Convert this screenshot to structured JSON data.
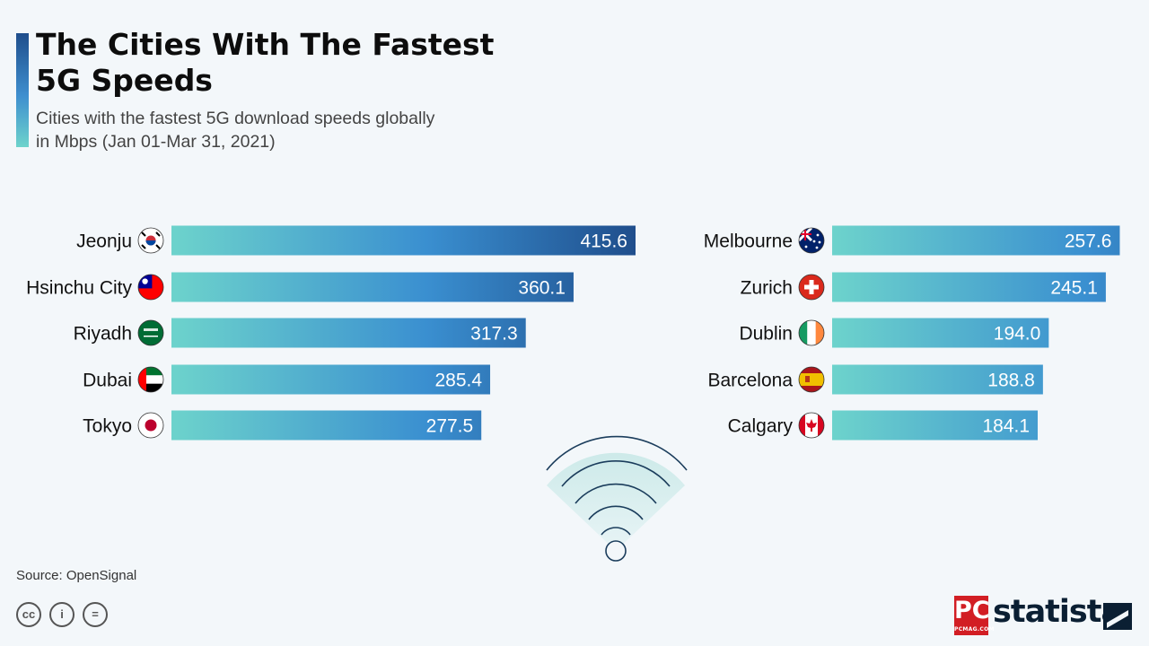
{
  "title": "The Cities With The Fastest 5G Speeds",
  "subtitle": "Cities with the fastest 5G download speeds globally in Mbps (Jan 01-Mar 31, 2021)",
  "source": "Source: OpenSignal",
  "license_icons": [
    "cc-icon",
    "attribution-icon",
    "no-derivatives-icon"
  ],
  "license_glyphs": [
    "cc",
    "i",
    "="
  ],
  "logos": {
    "pcmag": "PC",
    "pcmag_small": "PCMAG.COM",
    "statista": "statista"
  },
  "colors": {
    "bar_start": "#6dd3cc",
    "bar_end_max": "#1f4e8c",
    "background": "#f3f7fa",
    "accent": "#2a6fb5"
  },
  "chart_data": {
    "type": "bar",
    "orientation": "horizontal",
    "unit": "Mbps",
    "groups": [
      {
        "categories": [
          "Jeonju",
          "Hsinchu City",
          "Riyadh",
          "Dubai",
          "Tokyo"
        ],
        "flags": [
          "south-korea-flag",
          "taiwan-flag",
          "saudi-arabia-flag",
          "uae-flag",
          "japan-flag"
        ],
        "values": [
          415.6,
          360.1,
          317.3,
          285.4,
          277.5
        ],
        "labels": [
          "415.6",
          "360.1",
          "317.3",
          "285.4",
          "277.5"
        ]
      },
      {
        "categories": [
          "Melbourne",
          "Zurich",
          "Dublin",
          "Barcelona",
          "Calgary"
        ],
        "flags": [
          "australia-flag",
          "switzerland-flag",
          "ireland-flag",
          "spain-flag",
          "canada-flag"
        ],
        "values": [
          257.6,
          245.1,
          194.0,
          188.8,
          184.1
        ],
        "labels": [
          "257.6",
          "245.1",
          "194.0",
          "188.8",
          "184.1"
        ]
      }
    ],
    "xlim": [
      0,
      415.6
    ],
    "grid": false,
    "legend": "none"
  }
}
